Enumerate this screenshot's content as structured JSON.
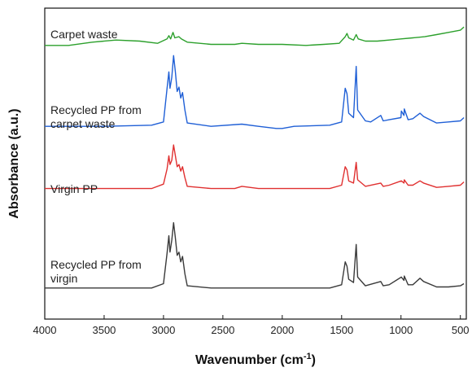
{
  "chart_data": {
    "type": "line",
    "title": "",
    "xlabel": "Wavenumber (cm",
    "xlabel_sup": "-1",
    "xlabel_close": ")",
    "ylabel": "Absorbance (a.u.)",
    "xlim": [
      4000,
      450
    ],
    "x_reversed": true,
    "y_ticks_shown": false,
    "grid": false,
    "legend": "none",
    "x_ticks": [
      "4000",
      "3500",
      "3000",
      "2500",
      "2000",
      "1500",
      "1000",
      "500"
    ],
    "series": [
      {
        "name": "Carpet waste",
        "color": "#2ca02c",
        "baseline": 0.88,
        "points": [
          [
            4000,
            0.0
          ],
          [
            3800,
            0.0
          ],
          [
            3600,
            0.03
          ],
          [
            3400,
            0.05
          ],
          [
            3200,
            0.04
          ],
          [
            3050,
            0.02
          ],
          [
            2970,
            0.06
          ],
          [
            2955,
            0.09
          ],
          [
            2940,
            0.06
          ],
          [
            2920,
            0.12
          ],
          [
            2905,
            0.07
          ],
          [
            2870,
            0.08
          ],
          [
            2850,
            0.06
          ],
          [
            2800,
            0.03
          ],
          [
            2600,
            0.01
          ],
          [
            2400,
            0.01
          ],
          [
            2340,
            0.02
          ],
          [
            2200,
            0.01
          ],
          [
            2000,
            0.01
          ],
          [
            1800,
            0.0
          ],
          [
            1650,
            0.01
          ],
          [
            1520,
            0.02
          ],
          [
            1470,
            0.08
          ],
          [
            1455,
            0.11
          ],
          [
            1440,
            0.07
          ],
          [
            1400,
            0.05
          ],
          [
            1377,
            0.1
          ],
          [
            1360,
            0.06
          ],
          [
            1300,
            0.04
          ],
          [
            1200,
            0.04
          ],
          [
            1100,
            0.05
          ],
          [
            1000,
            0.06
          ],
          [
            900,
            0.07
          ],
          [
            800,
            0.08
          ],
          [
            700,
            0.1
          ],
          [
            600,
            0.12
          ],
          [
            500,
            0.14
          ],
          [
            470,
            0.17
          ]
        ]
      },
      {
        "name": "Recycled PP from carpet waste",
        "color": "#1f5fd6",
        "baseline": 0.62,
        "points": [
          [
            4000,
            0.0
          ],
          [
            3500,
            0.0
          ],
          [
            3100,
            0.01
          ],
          [
            3000,
            0.04
          ],
          [
            2970,
            0.35
          ],
          [
            2955,
            0.5
          ],
          [
            2945,
            0.35
          ],
          [
            2930,
            0.45
          ],
          [
            2915,
            0.65
          ],
          [
            2900,
            0.5
          ],
          [
            2885,
            0.32
          ],
          [
            2870,
            0.36
          ],
          [
            2855,
            0.26
          ],
          [
            2840,
            0.31
          ],
          [
            2820,
            0.15
          ],
          [
            2800,
            0.03
          ],
          [
            2600,
            0.0
          ],
          [
            2340,
            0.02
          ],
          [
            2200,
            0.0
          ],
          [
            2050,
            -0.02
          ],
          [
            2000,
            -0.02
          ],
          [
            1900,
            0.0
          ],
          [
            1600,
            0.01
          ],
          [
            1500,
            0.04
          ],
          [
            1470,
            0.35
          ],
          [
            1455,
            0.3
          ],
          [
            1440,
            0.12
          ],
          [
            1400,
            0.08
          ],
          [
            1377,
            0.55
          ],
          [
            1365,
            0.15
          ],
          [
            1300,
            0.05
          ],
          [
            1255,
            0.04
          ],
          [
            1170,
            0.1
          ],
          [
            1150,
            0.05
          ],
          [
            1100,
            0.06
          ],
          [
            1000,
            0.08
          ],
          [
            997,
            0.14
          ],
          [
            975,
            0.1
          ],
          [
            972,
            0.16
          ],
          [
            940,
            0.06
          ],
          [
            900,
            0.07
          ],
          [
            840,
            0.12
          ],
          [
            810,
            0.09
          ],
          [
            700,
            0.03
          ],
          [
            600,
            0.04
          ],
          [
            500,
            0.05
          ],
          [
            470,
            0.08
          ]
        ]
      },
      {
        "name": "Virgin PP",
        "color": "#e03030",
        "baseline": 0.42,
        "points": [
          [
            4000,
            0.0
          ],
          [
            3500,
            0.0
          ],
          [
            3100,
            0.0
          ],
          [
            3000,
            0.04
          ],
          [
            2970,
            0.18
          ],
          [
            2955,
            0.3
          ],
          [
            2945,
            0.22
          ],
          [
            2930,
            0.26
          ],
          [
            2915,
            0.4
          ],
          [
            2900,
            0.3
          ],
          [
            2885,
            0.2
          ],
          [
            2870,
            0.22
          ],
          [
            2855,
            0.16
          ],
          [
            2840,
            0.2
          ],
          [
            2820,
            0.1
          ],
          [
            2800,
            0.02
          ],
          [
            2600,
            0.0
          ],
          [
            2400,
            0.0
          ],
          [
            2340,
            0.02
          ],
          [
            2200,
            0.0
          ],
          [
            2000,
            0.0
          ],
          [
            1600,
            0.0
          ],
          [
            1500,
            0.03
          ],
          [
            1470,
            0.2
          ],
          [
            1455,
            0.17
          ],
          [
            1440,
            0.07
          ],
          [
            1400,
            0.05
          ],
          [
            1377,
            0.24
          ],
          [
            1365,
            0.08
          ],
          [
            1300,
            0.02
          ],
          [
            1170,
            0.05
          ],
          [
            1150,
            0.02
          ],
          [
            1100,
            0.03
          ],
          [
            997,
            0.07
          ],
          [
            975,
            0.05
          ],
          [
            972,
            0.08
          ],
          [
            940,
            0.03
          ],
          [
            900,
            0.03
          ],
          [
            840,
            0.07
          ],
          [
            810,
            0.05
          ],
          [
            700,
            0.01
          ],
          [
            600,
            0.02
          ],
          [
            500,
            0.03
          ],
          [
            470,
            0.06
          ]
        ]
      },
      {
        "name": "Recycled PP from virgin",
        "color": "#3a3a3a",
        "baseline": 0.1,
        "points": [
          [
            4000,
            0.0
          ],
          [
            3500,
            0.0
          ],
          [
            3100,
            0.0
          ],
          [
            3000,
            0.04
          ],
          [
            2970,
            0.32
          ],
          [
            2955,
            0.48
          ],
          [
            2945,
            0.33
          ],
          [
            2930,
            0.44
          ],
          [
            2915,
            0.6
          ],
          [
            2900,
            0.46
          ],
          [
            2885,
            0.3
          ],
          [
            2870,
            0.33
          ],
          [
            2855,
            0.24
          ],
          [
            2840,
            0.29
          ],
          [
            2820,
            0.13
          ],
          [
            2800,
            0.02
          ],
          [
            2600,
            0.0
          ],
          [
            2400,
            0.0
          ],
          [
            2200,
            0.0
          ],
          [
            2000,
            0.0
          ],
          [
            1800,
            0.0
          ],
          [
            1600,
            0.0
          ],
          [
            1500,
            0.03
          ],
          [
            1470,
            0.24
          ],
          [
            1455,
            0.2
          ],
          [
            1440,
            0.08
          ],
          [
            1400,
            0.05
          ],
          [
            1377,
            0.4
          ],
          [
            1365,
            0.1
          ],
          [
            1300,
            0.02
          ],
          [
            1170,
            0.06
          ],
          [
            1150,
            0.02
          ],
          [
            1100,
            0.03
          ],
          [
            997,
            0.1
          ],
          [
            975,
            0.07
          ],
          [
            972,
            0.11
          ],
          [
            940,
            0.03
          ],
          [
            900,
            0.03
          ],
          [
            840,
            0.09
          ],
          [
            810,
            0.06
          ],
          [
            700,
            0.01
          ],
          [
            600,
            0.01
          ],
          [
            500,
            0.02
          ],
          [
            470,
            0.04
          ]
        ]
      }
    ],
    "series_labels": [
      {
        "lines": [
          "Carpet waste"
        ]
      },
      {
        "lines": [
          "Recycled PP from",
          "carpet waste"
        ]
      },
      {
        "lines": [
          "Virgin PP"
        ]
      },
      {
        "lines": [
          "Recycled PP from",
          "virgin"
        ]
      }
    ]
  }
}
